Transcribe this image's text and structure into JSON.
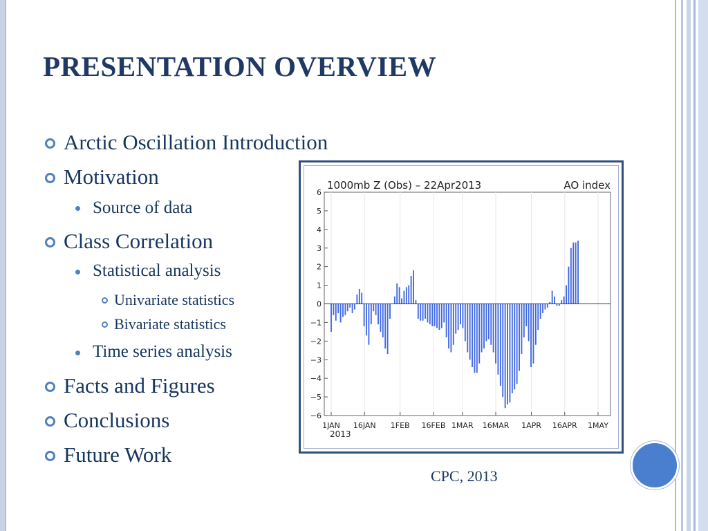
{
  "slide": {
    "title": "PRESENTATION OVERVIEW",
    "outline": [
      {
        "text": "Arctic Oscillation Introduction",
        "level": 1
      },
      {
        "text": "Motivation",
        "level": 1
      },
      {
        "text": "Source of data",
        "level": 2
      },
      {
        "text": "Class Correlation",
        "level": 1
      },
      {
        "text": "Statistical analysis",
        "level": 2
      },
      {
        "text": "Univariate statistics",
        "level": 3
      },
      {
        "text": "Bivariate statistics",
        "level": 3
      },
      {
        "text": "Time series analysis",
        "level": 2
      },
      {
        "text": "Facts and Figures",
        "level": 1
      },
      {
        "text": "Conclusions",
        "level": 1
      },
      {
        "text": "Future Work",
        "level": 1
      }
    ],
    "caption": "CPC, 2013",
    "colors": {
      "title": "#1f3864",
      "text": "#17365d",
      "bullet": "#4f81bd",
      "bars": "#4169e1"
    }
  },
  "chart_data": {
    "type": "bar",
    "title": "1000mb Z (Obs) – 22Apr2013",
    "subtitle": "AO index",
    "x_ticks": [
      "1JAN",
      "16JAN",
      "1FEB",
      "16FEB",
      "1MAR",
      "16MAR",
      "1APR",
      "16APR",
      "1MAY"
    ],
    "x_tick_sub": "2013",
    "ylim": [
      -6,
      6
    ],
    "y_ticks": [
      6,
      5,
      4,
      3,
      2,
      1,
      0,
      -1,
      -2,
      -3,
      -4,
      -5,
      -6
    ],
    "x_start": "2013-01-01",
    "x_end": "2013-05-01",
    "values": [
      -1.5,
      -0.6,
      -0.9,
      -0.5,
      -1.0,
      -0.7,
      -0.6,
      -0.4,
      -0.2,
      -0.5,
      -0.3,
      0.5,
      0.8,
      0.6,
      -1.2,
      -1.7,
      -2.2,
      -1.1,
      -0.4,
      -0.6,
      -1.1,
      -1.5,
      -1.8,
      -2.4,
      -2.7,
      -0.8,
      0.0,
      0.4,
      1.1,
      0.9,
      0.3,
      0.7,
      0.9,
      1.0,
      1.5,
      1.8,
      0.2,
      -0.8,
      -0.9,
      -0.9,
      -0.8,
      -1.0,
      -1.1,
      -1.2,
      -1.2,
      -1.3,
      -1.4,
      -1.3,
      -1.0,
      -1.8,
      -2.4,
      -2.6,
      -2.2,
      -1.6,
      -1.4,
      -1.1,
      -1.3,
      -2.0,
      -2.6,
      -3.0,
      -3.4,
      -3.7,
      -3.7,
      -3.2,
      -2.6,
      -2.4,
      -2.0,
      -1.9,
      -2.2,
      -2.6,
      -3.2,
      -3.8,
      -4.4,
      -5.0,
      -5.6,
      -5.4,
      -5.3,
      -4.8,
      -4.6,
      -4.3,
      -3.6,
      -2.7,
      -1.8,
      -1.2,
      -2.0,
      -3.4,
      -3.2,
      -2.2,
      -1.4,
      -0.8,
      -0.5,
      -0.3,
      -0.2,
      0.1,
      0.7,
      0.4,
      -0.1,
      -0.1,
      0.2,
      0.4,
      1.0,
      2.0,
      3.0,
      3.3,
      3.3,
      3.4
    ],
    "grid": true,
    "zero_line": true
  }
}
